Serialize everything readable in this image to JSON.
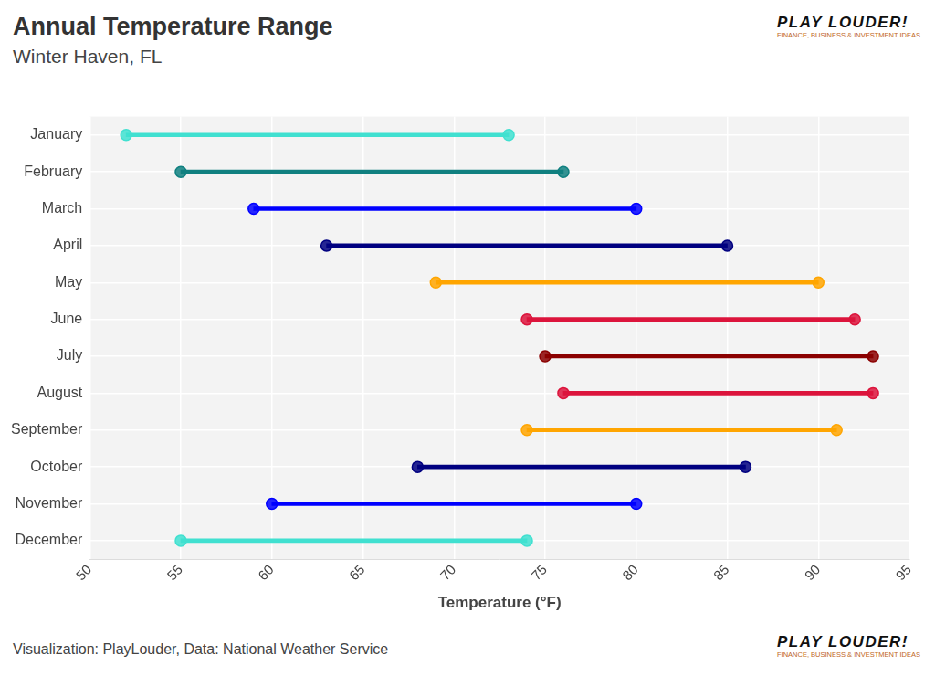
{
  "chart_data": {
    "type": "dumbbell",
    "title": "Annual Temperature Range",
    "subtitle": "Winter Haven, FL",
    "x_label": "Temperature (°F)",
    "source": "Visualization: PlayLouder, Data: National Weather Service",
    "logo": "PLAY LOUDER!",
    "logo_tagline": "FINANCE, BUSINESS & INVESTMENT IDEAS",
    "orientation": "horizontal",
    "categories": [
      "January",
      "February",
      "March",
      "April",
      "May",
      "June",
      "July",
      "August",
      "September",
      "October",
      "November",
      "December"
    ],
    "values": [
      [
        52,
        73
      ],
      [
        55,
        76
      ],
      [
        59,
        80
      ],
      [
        63,
        85
      ],
      [
        69,
        90
      ],
      [
        74,
        92
      ],
      [
        75,
        93
      ],
      [
        76,
        93
      ],
      [
        74,
        91
      ],
      [
        68,
        86
      ],
      [
        60,
        80
      ],
      [
        55,
        74
      ]
    ],
    "colors": [
      "#40e0d0",
      "#108080",
      "#0000ff",
      "#000080",
      "#ffa500",
      "#dc143c",
      "#8b0000",
      "#dc143c",
      "#ffa500",
      "#000080",
      "#0000ff",
      "#40e0d0"
    ],
    "xlim": [
      50,
      95
    ],
    "xticks": [
      50,
      55,
      60,
      65,
      70,
      75,
      80,
      85,
      90,
      95
    ],
    "grid": true
  }
}
